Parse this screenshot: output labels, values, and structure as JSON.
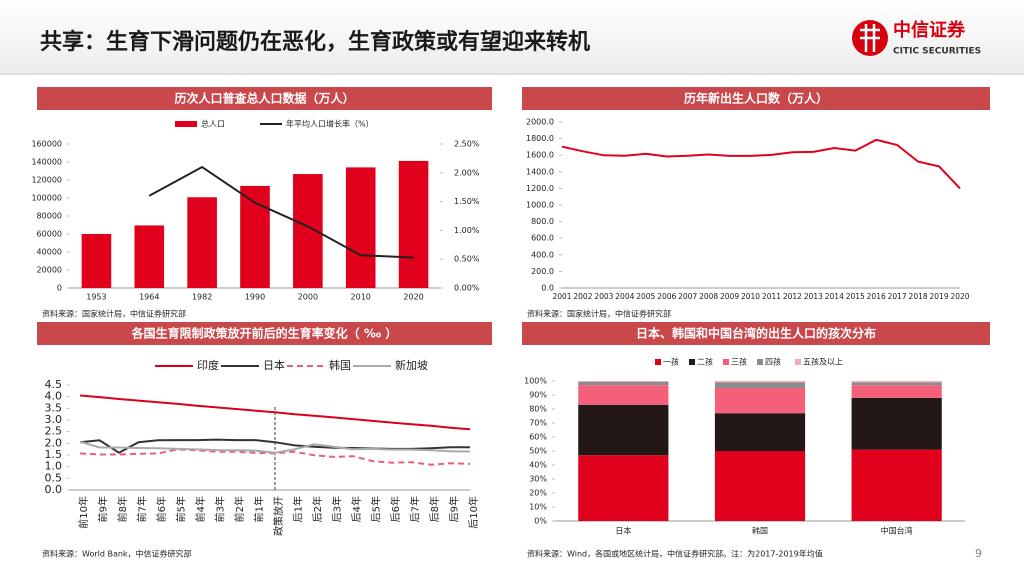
{
  "header": {
    "title": "共享：生育下滑问题仍在恶化，生育政策或有望迎来转机",
    "logo_cn": "中信证券",
    "logo_en": "CITIC SECURITIES"
  },
  "page_number": "9",
  "chart_data": [
    {
      "type": "combo",
      "title": "历次人口普查总人口数据（万人）",
      "source": "资料来源：国家统计局，中信证券研究部",
      "categories": [
        "1953",
        "1964",
        "1982",
        "1990",
        "2000",
        "2010",
        "2020"
      ],
      "series": [
        {
          "name": "总人口",
          "color": "#e0001b",
          "values": [
            60000,
            69500,
            100800,
            113400,
            126600,
            134000,
            141200
          ]
        },
        {
          "name": "年平均人口增长率（%）",
          "color": "#222222",
          "axis": "y2",
          "values": [
            null,
            1.6,
            2.1,
            1.48,
            1.07,
            0.57,
            0.53
          ]
        }
      ],
      "ylim": [
        0,
        160000
      ],
      "yticks": [
        0,
        20000,
        40000,
        60000,
        80000,
        100000,
        120000,
        140000,
        160000
      ],
      "y2lim": [
        0,
        2.5
      ],
      "y2ticks": [
        {
          "value": 0,
          "label": "0.00%"
        },
        {
          "value": 0.5,
          "label": "0.50%"
        },
        {
          "value": 1,
          "label": "1.00%"
        },
        {
          "value": 1.5,
          "label": "1.50%"
        },
        {
          "value": 2,
          "label": "2.00%"
        },
        {
          "value": 2.5,
          "label": "2.50%"
        }
      ]
    },
    {
      "type": "line",
      "title": "历年新出生人口数（万人）",
      "source": "资料来源：国家统计局，中信证券研究部",
      "x": [
        2001,
        2002,
        2003,
        2004,
        2005,
        2006,
        2007,
        2008,
        2009,
        2010,
        2011,
        2012,
        2013,
        2014,
        2015,
        2016,
        2017,
        2018,
        2019,
        2020
      ],
      "series": [
        {
          "color": "#e0001b",
          "values": [
            1702,
            1647,
            1599,
            1593,
            1617,
            1584,
            1594,
            1608,
            1591,
            1592,
            1604,
            1635,
            1640,
            1687,
            1655,
            1786,
            1723,
            1523,
            1465,
            1200
          ]
        }
      ],
      "xlim": [
        2001,
        2020
      ],
      "ylim": [
        0,
        2000
      ],
      "yticks": [
        {
          "value": 0,
          "label": "0.0"
        },
        {
          "value": 200,
          "label": "200.0"
        },
        {
          "value": 400,
          "label": "400.0"
        },
        {
          "value": 600,
          "label": "600.0"
        },
        {
          "value": 800,
          "label": "800.0"
        },
        {
          "value": 1000,
          "label": "1000.0"
        },
        {
          "value": 1200,
          "label": "1200.0"
        },
        {
          "value": 1400,
          "label": "1400.0"
        },
        {
          "value": 1600,
          "label": "1600.0"
        },
        {
          "value": 1800,
          "label": "1800.0"
        },
        {
          "value": 2000,
          "label": "2000.0"
        }
      ]
    },
    {
      "type": "line",
      "title": "各国生育限制政策放开前后的生育率变化（ ‰ ）",
      "source": "资料来源：World Bank，中信证券研究部",
      "categories": [
        "前10年",
        "前9年",
        "前8年",
        "前7年",
        "前6年",
        "前5年",
        "前4年",
        "前3年",
        "前2年",
        "前1年",
        "政策放开",
        "后1年",
        "后2年",
        "后3年",
        "后4年",
        "后5年",
        "后6年",
        "后7年",
        "后8年",
        "后9年",
        "后10年"
      ],
      "series": [
        {
          "name": "印度",
          "color": "#d9001b",
          "values": [
            4.05,
            3.98,
            3.9,
            3.83,
            3.76,
            3.69,
            3.61,
            3.54,
            3.47,
            3.4,
            3.33,
            3.25,
            3.18,
            3.11,
            3.04,
            2.96,
            2.89,
            2.82,
            2.75,
            2.67,
            2.6
          ]
        },
        {
          "name": "日本",
          "color": "#333333",
          "values": [
            2.05,
            2.13,
            1.6,
            2.05,
            2.13,
            2.14,
            2.14,
            2.16,
            2.14,
            2.14,
            2.05,
            1.91,
            1.85,
            1.81,
            1.8,
            1.78,
            1.76,
            1.76,
            1.79,
            1.83,
            1.83
          ]
        },
        {
          "name": "韩国",
          "color": "#e8607a",
          "dashed": true,
          "values": [
            1.57,
            1.52,
            1.52,
            1.55,
            1.57,
            1.74,
            1.7,
            1.64,
            1.64,
            1.59,
            1.57,
            1.64,
            1.49,
            1.42,
            1.45,
            1.24,
            1.17,
            1.19,
            1.08,
            1.15,
            1.12
          ]
        },
        {
          "name": "新加坡",
          "color": "#aaaaaa",
          "values": [
            2.07,
            1.82,
            1.82,
            1.8,
            1.79,
            1.76,
            1.74,
            1.71,
            1.7,
            1.69,
            1.6,
            1.74,
            1.96,
            1.85,
            1.75,
            1.76,
            1.73,
            1.73,
            1.7,
            1.66,
            1.65
          ]
        }
      ],
      "ylim": [
        0,
        4.5
      ],
      "yticks": [
        {
          "value": 0,
          "label": "0.0"
        },
        0.5,
        {
          "value": 1,
          "label": "1.0"
        },
        1.5,
        {
          "value": 2,
          "label": "2.0"
        },
        2.5,
        {
          "value": 3,
          "label": "3.0"
        },
        3.5,
        {
          "value": 4,
          "label": "4.0"
        },
        4.5
      ]
    },
    {
      "type": "stacked-bar",
      "title": "日本、韩国和中国台湾的出生人口的孩次分布",
      "source": "资料来源：Wind，各国或地区统计局，中信证券研究部。注：为2017-2019年均值",
      "categories": [
        "日本",
        "韩国",
        "中国台湾"
      ],
      "series": [
        {
          "name": "一孩",
          "color": "#e0001b",
          "values": [
            47,
            50,
            51
          ]
        },
        {
          "name": "二孩",
          "color": "#231815",
          "values": [
            36,
            27,
            37
          ]
        },
        {
          "name": "三孩",
          "color": "#f4607a",
          "values": [
            14,
            18,
            9
          ]
        },
        {
          "name": "四孩",
          "color": "#8c8c8c",
          "values": [
            2.5,
            4,
            2
          ]
        },
        {
          "name": "五孩及以上",
          "color": "#f7a8b5",
          "values": [
            0.5,
            1,
            1
          ]
        }
      ],
      "ylim": [
        0,
        100
      ],
      "yticks": [
        {
          "value": 0,
          "label": "0%"
        },
        {
          "value": 10,
          "label": "10%"
        },
        {
          "value": 20,
          "label": "20%"
        },
        {
          "value": 30,
          "label": "30%"
        },
        {
          "value": 40,
          "label": "40%"
        },
        {
          "value": 50,
          "label": "50%"
        },
        {
          "value": 60,
          "label": "60%"
        },
        {
          "value": 70,
          "label": "70%"
        },
        {
          "value": 80,
          "label": "80%"
        },
        {
          "value": 90,
          "label": "90%"
        },
        {
          "value": 100,
          "label": "100%"
        }
      ]
    }
  ]
}
